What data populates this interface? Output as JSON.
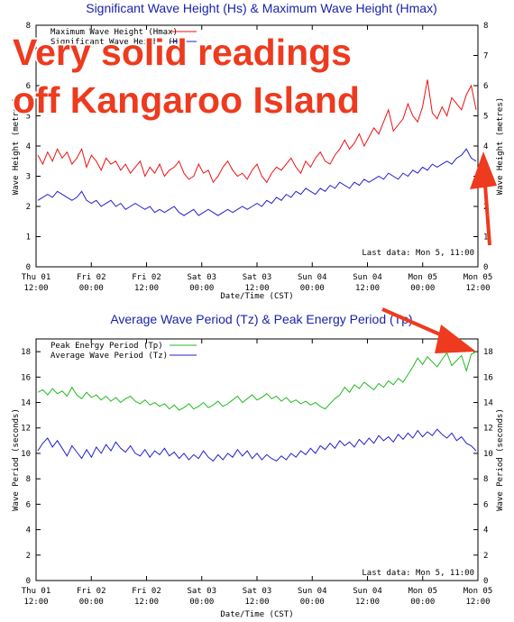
{
  "overlay": {
    "line1": "Very solid readings",
    "line2": "off Kangaroo Island",
    "color": "#ee3a1e"
  },
  "chart_data": [
    {
      "type": "line",
      "title": "Significant Wave Height (Hs) & Maximum Wave Height (Hmax)",
      "ylabel_left": "Wave Height (metres)",
      "ylabel_right": "Wave Height (metres)",
      "xlabel": "Date/Time (CST)",
      "ylim": [
        0,
        8
      ],
      "yticks": [
        "0",
        "1",
        "2",
        "3",
        "4",
        "5",
        "6",
        "7",
        "8"
      ],
      "xticks": [
        {
          "top": "Thu 01",
          "bottom": "12:00"
        },
        {
          "top": "Fri 02",
          "bottom": "00:00"
        },
        {
          "top": "Fri 02",
          "bottom": "12:00"
        },
        {
          "top": "Sat 03",
          "bottom": "00:00"
        },
        {
          "top": "Sat 03",
          "bottom": "12:00"
        },
        {
          "top": "Sun 04",
          "bottom": "00:00"
        },
        {
          "top": "Sun 04",
          "bottom": "12:00"
        },
        {
          "top": "Mon 05",
          "bottom": "00:00"
        },
        {
          "top": "Mon 05",
          "bottom": "12:00"
        }
      ],
      "annotation": "Last data: Mon  5, 11:00",
      "grid": false,
      "legend_placement": "top-left",
      "series": [
        {
          "name": "Maximum Wave Height (Hmax)",
          "color": "#ee1111",
          "values": [
            3.7,
            3.4,
            3.8,
            3.5,
            3.9,
            3.6,
            3.8,
            3.4,
            3.6,
            3.9,
            3.3,
            3.7,
            3.5,
            3.2,
            3.6,
            3.4,
            3.5,
            3.2,
            3.4,
            3.1,
            3.3,
            3.5,
            3.0,
            3.3,
            3.1,
            3.4,
            3.0,
            3.2,
            3.3,
            3.5,
            3.1,
            2.9,
            3.0,
            3.4,
            3.1,
            3.2,
            2.8,
            3.0,
            3.3,
            3.5,
            3.2,
            3.0,
            3.1,
            2.9,
            3.2,
            3.4,
            3.0,
            2.8,
            3.1,
            3.3,
            3.2,
            3.4,
            3.6,
            3.3,
            3.1,
            3.5,
            3.3,
            3.6,
            3.8,
            3.5,
            3.4,
            3.7,
            3.9,
            4.2,
            3.9,
            4.1,
            4.4,
            4.0,
            4.3,
            4.6,
            4.4,
            4.8,
            5.2,
            4.5,
            4.7,
            4.9,
            5.4,
            5.0,
            4.8,
            5.3,
            6.2,
            5.1,
            4.9,
            5.3,
            5.0,
            5.6,
            5.4,
            5.2,
            5.7,
            6.0,
            5.2
          ]
        },
        {
          "name": "Significant Wave Height (Hs)",
          "color": "#2222cc",
          "values": [
            2.2,
            2.3,
            2.4,
            2.3,
            2.5,
            2.4,
            2.3,
            2.2,
            2.3,
            2.5,
            2.2,
            2.1,
            2.2,
            2.0,
            2.1,
            2.2,
            2.0,
            2.1,
            1.9,
            2.0,
            2.1,
            2.0,
            1.9,
            2.0,
            1.8,
            1.9,
            1.8,
            1.9,
            2.0,
            1.8,
            1.7,
            1.8,
            1.9,
            1.7,
            1.8,
            1.9,
            1.8,
            1.7,
            1.8,
            1.9,
            1.8,
            1.9,
            2.0,
            1.9,
            2.0,
            2.1,
            2.0,
            2.2,
            2.1,
            2.3,
            2.2,
            2.4,
            2.3,
            2.5,
            2.4,
            2.6,
            2.5,
            2.4,
            2.6,
            2.5,
            2.7,
            2.6,
            2.8,
            2.7,
            2.6,
            2.8,
            2.7,
            2.9,
            2.8,
            2.9,
            3.0,
            2.9,
            3.1,
            3.0,
            2.9,
            3.1,
            3.0,
            3.2,
            3.1,
            3.3,
            3.2,
            3.4,
            3.3,
            3.4,
            3.5,
            3.4,
            3.6,
            3.7,
            3.9,
            3.6,
            3.5
          ]
        }
      ]
    },
    {
      "type": "line",
      "title": "Average Wave Period (Tz) & Peak Energy Period (Tp)",
      "ylabel_left": "Wave Period (seconds)",
      "ylabel_right": "Wave Period (seconds)",
      "xlabel": "Date/Time (CST)",
      "ylim": [
        0,
        19
      ],
      "yticks": [
        "0",
        "2",
        "4",
        "6",
        "8",
        "10",
        "12",
        "14",
        "16",
        "18"
      ],
      "xticks": [
        {
          "top": "Thu 01",
          "bottom": "12:00"
        },
        {
          "top": "Fri 02",
          "bottom": "00:00"
        },
        {
          "top": "Fri 02",
          "bottom": "12:00"
        },
        {
          "top": "Sat 03",
          "bottom": "00:00"
        },
        {
          "top": "Sat 03",
          "bottom": "12:00"
        },
        {
          "top": "Sun 04",
          "bottom": "00:00"
        },
        {
          "top": "Sun 04",
          "bottom": "12:00"
        },
        {
          "top": "Mon 05",
          "bottom": "00:00"
        },
        {
          "top": "Mon 05",
          "bottom": "12:00"
        }
      ],
      "annotation": "Last data: Mon  5, 11:00",
      "grid": false,
      "legend_placement": "top-left",
      "series": [
        {
          "name": "Peak Energy Period (Tp)",
          "color": "#22bb22",
          "values": [
            14.8,
            15.0,
            14.6,
            15.1,
            14.7,
            14.9,
            14.5,
            15.2,
            14.6,
            14.3,
            14.8,
            14.4,
            14.6,
            14.2,
            14.5,
            14.1,
            14.4,
            14.0,
            14.3,
            14.5,
            14.1,
            13.9,
            14.2,
            13.8,
            14.0,
            13.7,
            13.9,
            13.5,
            13.8,
            13.4,
            13.6,
            13.9,
            13.5,
            13.7,
            14.0,
            13.6,
            13.8,
            14.1,
            13.7,
            13.9,
            14.2,
            14.5,
            14.0,
            14.3,
            14.6,
            14.2,
            14.4,
            14.7,
            14.3,
            14.5,
            14.1,
            14.4,
            14.0,
            14.2,
            13.9,
            14.1,
            13.8,
            14.0,
            13.7,
            13.5,
            13.9,
            14.3,
            14.6,
            15.2,
            14.8,
            15.4,
            15.1,
            15.6,
            15.3,
            15.0,
            15.5,
            15.2,
            15.7,
            15.4,
            15.9,
            15.6,
            16.2,
            16.8,
            17.5,
            17.0,
            17.6,
            17.2,
            16.8,
            17.4,
            17.9,
            16.9,
            17.3,
            17.7,
            16.5,
            17.8,
            18.0
          ]
        },
        {
          "name": "Average Wave Period (Tz)",
          "color": "#2222cc",
          "values": [
            10.2,
            10.8,
            11.2,
            10.5,
            11.0,
            10.4,
            9.8,
            10.6,
            10.1,
            9.6,
            10.3,
            9.7,
            10.5,
            10.0,
            10.7,
            10.2,
            10.9,
            10.4,
            10.1,
            10.6,
            10.0,
            9.8,
            10.3,
            9.7,
            10.2,
            9.9,
            10.4,
            9.8,
            10.1,
            9.6,
            10.0,
            9.5,
            9.9,
            9.6,
            10.2,
            9.7,
            9.4,
            9.9,
            9.5,
            10.0,
            9.7,
            10.3,
            9.8,
            10.2,
            9.6,
            10.0,
            9.5,
            9.9,
            9.6,
            9.4,
            9.8,
            9.5,
            10.0,
            9.7,
            10.2,
            9.9,
            10.4,
            10.0,
            10.6,
            10.3,
            10.8,
            10.4,
            11.0,
            10.6,
            10.9,
            10.5,
            11.1,
            10.7,
            11.2,
            10.8,
            11.4,
            11.0,
            11.3,
            10.9,
            11.5,
            11.1,
            11.6,
            11.2,
            11.8,
            11.3,
            11.7,
            11.4,
            11.9,
            11.5,
            11.2,
            11.6,
            11.0,
            11.3,
            10.8,
            10.6,
            10.2
          ]
        }
      ]
    }
  ]
}
